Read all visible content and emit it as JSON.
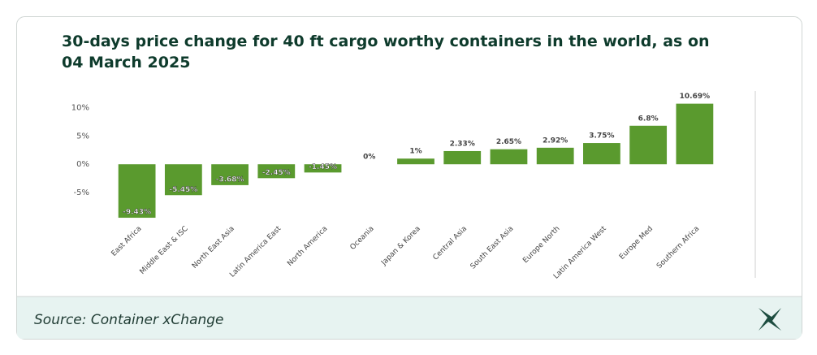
{
  "chart_data": {
    "type": "bar",
    "title": "30-days price change for 40 ft cargo worthy containers in the world, as on 04 March 2025",
    "categories": [
      "East Africa",
      "Middle East & ISC",
      "North East Asia",
      "Latin America East",
      "North America",
      "Oceania",
      "Japan & Korea",
      "Central Asia",
      "South East Asia",
      "Europe North",
      "Latin America West",
      "Europe Med",
      "Southern Africa"
    ],
    "values": [
      -9.43,
      -5.45,
      -3.68,
      -2.45,
      -1.45,
      0,
      1,
      2.33,
      2.65,
      2.92,
      3.75,
      6.8,
      10.69
    ],
    "value_labels": [
      "-9.43%",
      "-5.45%",
      "-3.68%",
      "-2.45%",
      "-1.45%",
      "0%",
      "1%",
      "2.33%",
      "2.65%",
      "2.92%",
      "3.75%",
      "6.8%",
      "10.69%"
    ],
    "color": "#5a9a2e",
    "ylim": [
      -10,
      12.5
    ],
    "yticks": [
      {
        "value": -5,
        "label": "-5%"
      },
      {
        "value": 0,
        "label": "0%"
      },
      {
        "value": 5,
        "label": "5%"
      },
      {
        "value": 10,
        "label": "10%"
      }
    ],
    "grid": false
  },
  "source": "Source: Container xChange"
}
